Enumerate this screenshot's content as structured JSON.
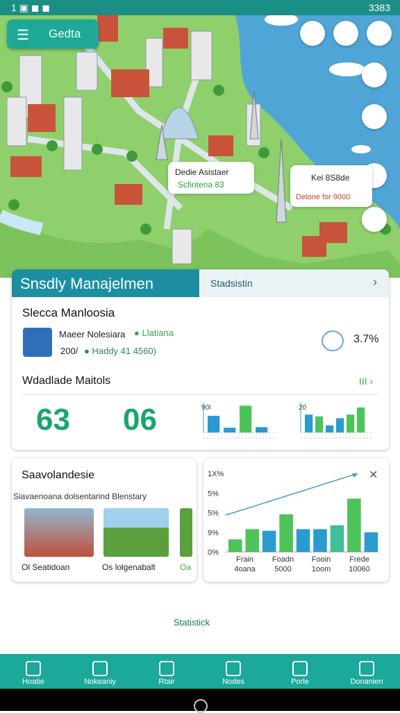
{
  "status": {
    "time": "3383"
  },
  "header": {
    "button": "Gedta"
  },
  "map": {
    "callout1": {
      "title": "Dedie Asistaer",
      "sub": "Scfintena 83"
    },
    "callout2": {
      "title": "Kei 8S8de",
      "sub": "Delone for 9000"
    }
  },
  "panel": {
    "tab": "Snsdly Manajelmen",
    "tab2": "Stadsistin",
    "card_title": "Slecca Manloosia",
    "item_name": "Maeer Nolesiara",
    "item_tag": "Llatiana",
    "item_code": "200/",
    "item_detail": "Haddy 41 4560)",
    "item_value": "3.7%",
    "section": "Wdadlade Maitols",
    "section_link": "III",
    "big1": "63",
    "big2": "06",
    "mini1": {
      "label": "90l",
      "ylim": [
        0,
        50
      ],
      "values": [
        28,
        8,
        45,
        9
      ],
      "colors": [
        "#2a9bd0",
        "#2a9bd0",
        "#4cc45a",
        "#2a9bd0"
      ]
    },
    "mini2": {
      "label": "20",
      "ylim": [
        0,
        50
      ],
      "values": [
        30,
        27,
        12,
        24,
        30,
        42
      ],
      "colors": [
        "#2a9bd0",
        "#4cc45a",
        "#2a9bd0",
        "#2a9bd0",
        "#4cc45a",
        "#4cc45a"
      ]
    }
  },
  "left_card": {
    "title": "Saavolandesie",
    "subtitle": "Siavaenoana dolsentarind Blenstary",
    "captions": [
      "Ol Seatidoan",
      "Os lolgenabalt",
      "Oa"
    ]
  },
  "stats_chart": {
    "axis_labels": [
      "1X%",
      "5%",
      "5%",
      "9%",
      "0%"
    ],
    "ylim": [
      0,
      100
    ],
    "values": [
      16,
      29,
      27,
      48,
      29,
      29,
      34,
      68,
      25
    ],
    "colors": [
      "#4cc45a",
      "#4cc45a",
      "#2a9bd0",
      "#4cc45a",
      "#2a9bd0",
      "#2a9bd0",
      "#3fbf9a",
      "#4cc45a",
      "#2a9bd0"
    ],
    "categories": [
      [
        "Frain",
        "4oana"
      ],
      [
        "Foadn",
        "5000"
      ],
      [
        "Fooin",
        "1oom"
      ],
      [
        "Frede",
        "10060"
      ]
    ]
  },
  "footer_text": "Statistick",
  "nav": [
    "Hoatie",
    "Nokeaniy",
    "Rtair",
    "Nodes",
    "Porle",
    "Donanien"
  ]
}
